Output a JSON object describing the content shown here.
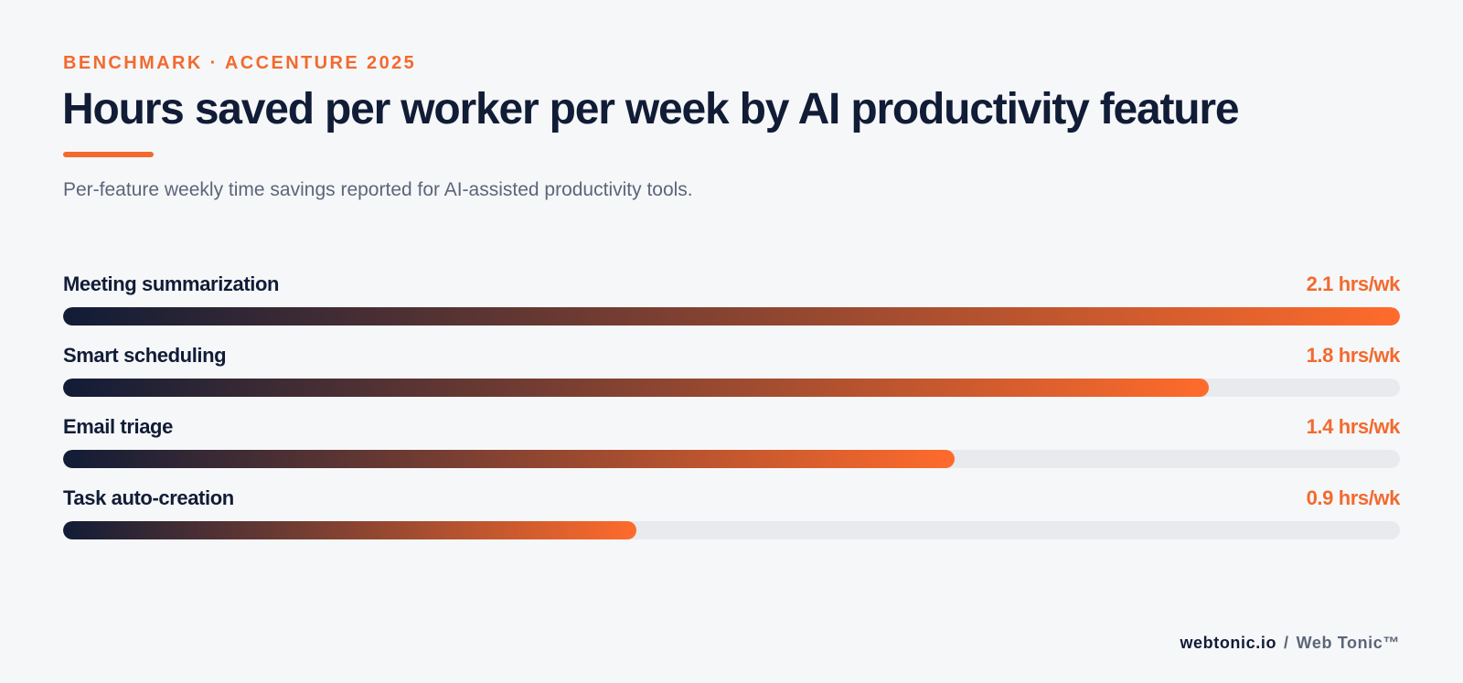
{
  "header": {
    "eyebrow": "BENCHMARK · ACCENTURE 2025",
    "title": "Hours saved per worker per week by AI productivity feature",
    "subtitle": "Per-feature weekly time savings reported for AI-assisted productivity tools."
  },
  "chart_data": {
    "type": "bar",
    "orientation": "horizontal",
    "categories": [
      "Meeting summarization",
      "Smart scheduling",
      "Email triage",
      "Task auto-creation"
    ],
    "values": [
      2.1,
      1.8,
      1.4,
      0.9
    ],
    "value_labels": [
      "2.1 hrs/wk",
      "1.8 hrs/wk",
      "1.4 hrs/wk",
      "0.9 hrs/wk"
    ],
    "unit": "hrs/wk",
    "xlim": [
      0,
      2.1
    ],
    "grid": false,
    "legend": "none",
    "colors": {
      "bar_start": "#111c36",
      "bar_end": "#ff6b2c",
      "track": "#e8eaee",
      "value_text": "#f26a2e"
    }
  },
  "footer": {
    "site": "webtonic.io",
    "separator": "/",
    "brand": "Web Tonic™"
  }
}
